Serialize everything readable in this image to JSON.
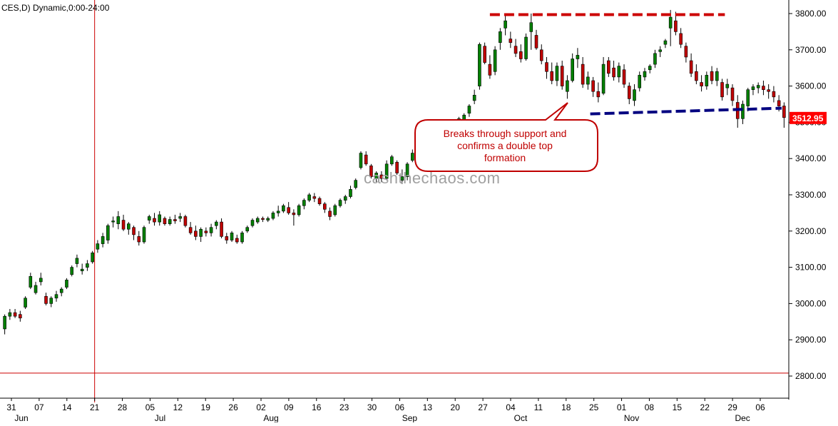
{
  "header": {
    "title": "CES,D) Dynamic,0:00-24:00"
  },
  "watermark": "cashthechaos.com",
  "annotation": {
    "lines": [
      "Breaks through support and",
      "confirms a double top",
      "formation"
    ]
  },
  "last_price": "3512.95",
  "colors": {
    "up": "#008000",
    "down": "#c00000",
    "resistance": "#cc0000",
    "support": "#000080",
    "cursor": "#cc0000",
    "callout": "#c00000",
    "last_price_bg": "#ff0000"
  },
  "chart_data": {
    "type": "candlestick",
    "title": "",
    "x_dates": [
      "31",
      "07",
      "14",
      "21",
      "28",
      "05",
      "12",
      "19",
      "26",
      "02",
      "09",
      "16",
      "23",
      "30",
      "06",
      "13",
      "20",
      "27",
      "04",
      "11",
      "18",
      "25",
      "01",
      "08",
      "15",
      "22",
      "29",
      "06"
    ],
    "x_months": [
      "Jun",
      "Jul",
      "Aug",
      "Sep",
      "Oct",
      "Nov",
      "Dec"
    ],
    "y_ticks": [
      "2800.00",
      "2900.00",
      "3000.00",
      "3100.00",
      "3200.00",
      "3300.00",
      "3400.00",
      "3500.00",
      "3600.00",
      "3700.00",
      "3800.00"
    ],
    "ylim": [
      2780,
      3830
    ],
    "grid": false,
    "series": [
      {
        "candles": [
          [
            2930,
            2970,
            2915,
            2965
          ],
          [
            2965,
            2985,
            2955,
            2975
          ],
          [
            2975,
            2985,
            2960,
            2965
          ],
          [
            2970,
            2980,
            2950,
            2960
          ],
          [
            2990,
            3020,
            2985,
            3015
          ],
          [
            3045,
            3085,
            3040,
            3075
          ],
          [
            3030,
            3060,
            3025,
            3050
          ],
          [
            3060,
            3085,
            3050,
            3070
          ],
          [
            3020,
            3030,
            2995,
            3000
          ],
          [
            3000,
            3020,
            2990,
            3015
          ],
          [
            3015,
            3035,
            3005,
            3025
          ],
          [
            3030,
            3045,
            3020,
            3040
          ],
          [
            3045,
            3070,
            3040,
            3065
          ],
          [
            3080,
            3105,
            3075,
            3100
          ],
          [
            3110,
            3135,
            3100,
            3125
          ],
          [
            3090,
            3110,
            3080,
            3095
          ],
          [
            3100,
            3120,
            3090,
            3110
          ],
          [
            3115,
            3145,
            3110,
            3140
          ],
          [
            3150,
            3175,
            3140,
            3165
          ],
          [
            3165,
            3195,
            3155,
            3185
          ],
          [
            3175,
            3220,
            3165,
            3215
          ],
          [
            3225,
            3240,
            3210,
            3228
          ],
          [
            3220,
            3255,
            3205,
            3240
          ],
          [
            3230,
            3245,
            3200,
            3205
          ],
          [
            3205,
            3225,
            3190,
            3220
          ],
          [
            3210,
            3215,
            3175,
            3190
          ],
          [
            3185,
            3200,
            3160,
            3170
          ],
          [
            3170,
            3215,
            3165,
            3210
          ],
          [
            3230,
            3245,
            3220,
            3240
          ],
          [
            3235,
            3250,
            3215,
            3225
          ],
          [
            3225,
            3255,
            3215,
            3245
          ],
          [
            3235,
            3240,
            3215,
            3220
          ],
          [
            3220,
            3240,
            3215,
            3232
          ],
          [
            3232,
            3245,
            3220,
            3228
          ],
          [
            3235,
            3250,
            3225,
            3240
          ],
          [
            3240,
            3245,
            3210,
            3215
          ],
          [
            3210,
            3225,
            3190,
            3195
          ],
          [
            3200,
            3215,
            3175,
            3185
          ],
          [
            3185,
            3210,
            3170,
            3205
          ],
          [
            3200,
            3210,
            3185,
            3195
          ],
          [
            3195,
            3220,
            3185,
            3210
          ],
          [
            3215,
            3230,
            3205,
            3225
          ],
          [
            3225,
            3235,
            3180,
            3185
          ],
          [
            3185,
            3195,
            3165,
            3175
          ],
          [
            3175,
            3200,
            3170,
            3195
          ],
          [
            3180,
            3190,
            3165,
            3170
          ],
          [
            3170,
            3200,
            3165,
            3195
          ],
          [
            3200,
            3215,
            3195,
            3210
          ],
          [
            3215,
            3235,
            3210,
            3230
          ],
          [
            3225,
            3240,
            3220,
            3235
          ],
          [
            3235,
            3240,
            3225,
            3232
          ],
          [
            3230,
            3240,
            3225,
            3235
          ],
          [
            3235,
            3255,
            3230,
            3250
          ],
          [
            3250,
            3270,
            3240,
            3255
          ],
          [
            3255,
            3275,
            3250,
            3270
          ],
          [
            3265,
            3280,
            3245,
            3250
          ],
          [
            3250,
            3260,
            3215,
            3245
          ],
          [
            3245,
            3275,
            3240,
            3270
          ],
          [
            3270,
            3290,
            3260,
            3285
          ],
          [
            3285,
            3305,
            3280,
            3300
          ],
          [
            3295,
            3305,
            3280,
            3290
          ],
          [
            3290,
            3295,
            3270,
            3275
          ],
          [
            3275,
            3280,
            3250,
            3260
          ],
          [
            3255,
            3265,
            3230,
            3240
          ],
          [
            3245,
            3275,
            3240,
            3270
          ],
          [
            3270,
            3290,
            3265,
            3285
          ],
          [
            3285,
            3300,
            3275,
            3295
          ],
          [
            3295,
            3325,
            3290,
            3315
          ],
          [
            3320,
            3345,
            3315,
            3340
          ],
          [
            3375,
            3420,
            3370,
            3415
          ],
          [
            3410,
            3420,
            3380,
            3385
          ],
          [
            3380,
            3385,
            3345,
            3350
          ],
          [
            3345,
            3365,
            3335,
            3360
          ],
          [
            3355,
            3365,
            3335,
            3345
          ],
          [
            3345,
            3395,
            3340,
            3385
          ],
          [
            3385,
            3410,
            3380,
            3405
          ],
          [
            3390,
            3395,
            3355,
            3360
          ],
          [
            3340,
            3370,
            3330,
            3350
          ],
          [
            3350,
            3390,
            3340,
            3385
          ],
          [
            3395,
            3425,
            3390,
            3415
          ],
          [
            3430,
            3460,
            3425,
            3450
          ],
          [
            3450,
            3475,
            3440,
            3465
          ],
          [
            3465,
            3480,
            3455,
            3470
          ],
          [
            3470,
            3495,
            3465,
            3490
          ],
          [
            3485,
            3495,
            3470,
            3475
          ],
          [
            3470,
            3490,
            3460,
            3485
          ],
          [
            3480,
            3500,
            3475,
            3490
          ],
          [
            3490,
            3505,
            3485,
            3500
          ],
          [
            3500,
            3515,
            3490,
            3510
          ],
          [
            3505,
            3525,
            3495,
            3520
          ],
          [
            3525,
            3550,
            3515,
            3545
          ],
          [
            3560,
            3590,
            3550,
            3575
          ],
          [
            3600,
            3720,
            3590,
            3715
          ],
          [
            3710,
            3720,
            3660,
            3665
          ],
          [
            3660,
            3685,
            3620,
            3630
          ],
          [
            3640,
            3710,
            3630,
            3700
          ],
          [
            3720,
            3760,
            3700,
            3750
          ],
          [
            3760,
            3795,
            3740,
            3780
          ],
          [
            3730,
            3750,
            3705,
            3720
          ],
          [
            3710,
            3730,
            3680,
            3690
          ],
          [
            3695,
            3715,
            3665,
            3675
          ],
          [
            3675,
            3745,
            3670,
            3735
          ],
          [
            3750,
            3800,
            3700,
            3775
          ],
          [
            3740,
            3755,
            3700,
            3705
          ],
          [
            3700,
            3715,
            3660,
            3670
          ],
          [
            3665,
            3680,
            3620,
            3640
          ],
          [
            3640,
            3665,
            3605,
            3615
          ],
          [
            3615,
            3665,
            3600,
            3655
          ],
          [
            3655,
            3670,
            3590,
            3600
          ],
          [
            3585,
            3630,
            3565,
            3615
          ],
          [
            3615,
            3690,
            3610,
            3675
          ],
          [
            3675,
            3705,
            3650,
            3685
          ],
          [
            3660,
            3680,
            3595,
            3605
          ],
          [
            3605,
            3640,
            3590,
            3625
          ],
          [
            3615,
            3625,
            3570,
            3585
          ],
          [
            3585,
            3610,
            3555,
            3570
          ],
          [
            3580,
            3680,
            3575,
            3660
          ],
          [
            3670,
            3680,
            3625,
            3635
          ],
          [
            3650,
            3670,
            3615,
            3625
          ],
          [
            3625,
            3665,
            3610,
            3655
          ],
          [
            3645,
            3660,
            3595,
            3605
          ],
          [
            3600,
            3610,
            3550,
            3565
          ],
          [
            3560,
            3605,
            3545,
            3590
          ],
          [
            3595,
            3640,
            3585,
            3630
          ],
          [
            3625,
            3650,
            3615,
            3640
          ],
          [
            3645,
            3660,
            3635,
            3655
          ],
          [
            3660,
            3700,
            3650,
            3690
          ],
          [
            3695,
            3710,
            3680,
            3700
          ],
          [
            3715,
            3730,
            3705,
            3725
          ],
          [
            3760,
            3810,
            3710,
            3790
          ],
          [
            3780,
            3805,
            3740,
            3750
          ],
          [
            3745,
            3760,
            3705,
            3715
          ],
          [
            3710,
            3720,
            3665,
            3680
          ],
          [
            3670,
            3690,
            3625,
            3635
          ],
          [
            3640,
            3660,
            3605,
            3615
          ],
          [
            3610,
            3630,
            3585,
            3600
          ],
          [
            3600,
            3640,
            3590,
            3630
          ],
          [
            3640,
            3655,
            3605,
            3615
          ],
          [
            3615,
            3650,
            3600,
            3640
          ],
          [
            3610,
            3620,
            3560,
            3570
          ],
          [
            3595,
            3620,
            3575,
            3605
          ],
          [
            3595,
            3605,
            3545,
            3560
          ],
          [
            3555,
            3575,
            3485,
            3510
          ],
          [
            3510,
            3560,
            3495,
            3550
          ],
          [
            3545,
            3595,
            3530,
            3590
          ],
          [
            3590,
            3605,
            3575,
            3598
          ],
          [
            3595,
            3610,
            3580,
            3602
          ],
          [
            3600,
            3615,
            3575,
            3590
          ],
          [
            3590,
            3605,
            3565,
            3585
          ],
          [
            3585,
            3600,
            3555,
            3570
          ],
          [
            3560,
            3575,
            3530,
            3545
          ],
          [
            3545,
            3555,
            3485,
            3513
          ]
        ]
      }
    ],
    "resistance_level": 3795,
    "support_level": 3535,
    "vertical_marker_date": "21",
    "horizontal_marker": 2808
  }
}
